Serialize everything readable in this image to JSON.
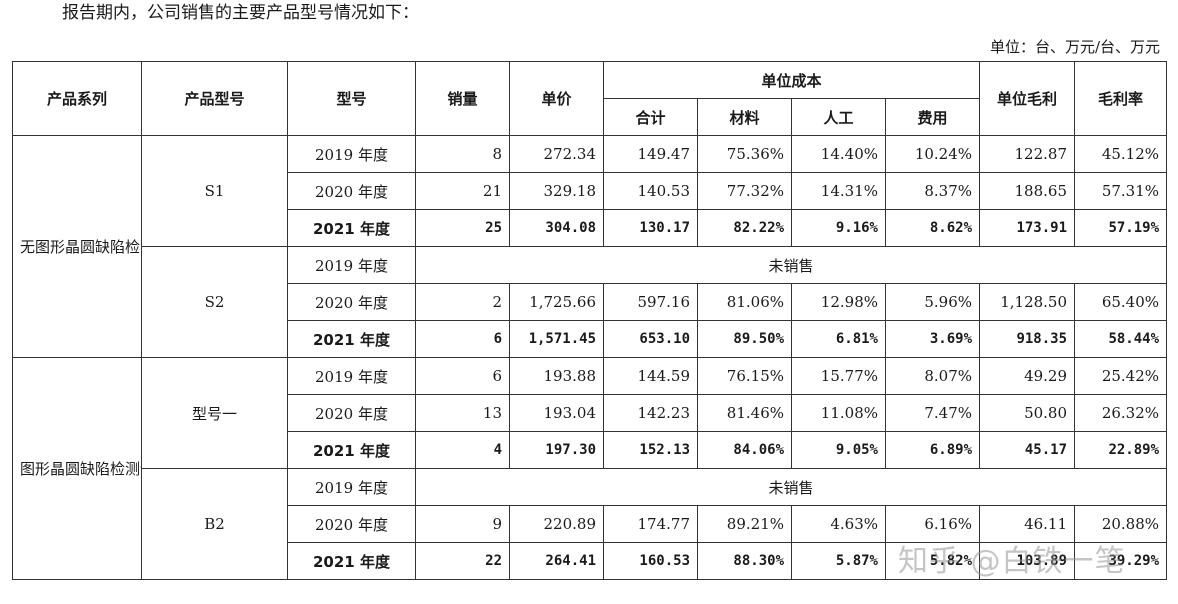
{
  "intro": "报告期内，公司销售的主要产品型号情况如下：",
  "unit": "单位：台、万元/台、万元",
  "headers": {
    "series": "产品系列",
    "model": "产品型号",
    "type": "型号",
    "sales": "销量",
    "price": "单价",
    "unit_cost": "单位成本",
    "total": "合计",
    "material": "材料",
    "labor": "人工",
    "expense": "费用",
    "unit_gross_profit": "单位毛利",
    "gross_margin": "毛利率"
  },
  "unsold_label": "未销售",
  "groups": [
    {
      "series": "无图形晶圆缺陷检测设备",
      "models": [
        {
          "model": "S1",
          "rows": [
            {
              "year": "2019 年度",
              "sales": "8",
              "price": "272.34",
              "total": "149.47",
              "material": "75.36%",
              "labor": "14.40%",
              "expense": "10.24%",
              "gp": "122.87",
              "margin": "45.12%"
            },
            {
              "year": "2020 年度",
              "sales": "21",
              "price": "329.18",
              "total": "140.53",
              "material": "77.32%",
              "labor": "14.31%",
              "expense": "8.37%",
              "gp": "188.65",
              "margin": "57.31%"
            },
            {
              "year": "2021 年度",
              "sales": "25",
              "price": "304.08",
              "total": "130.17",
              "material": "82.22%",
              "labor": "9.16%",
              "expense": "8.62%",
              "gp": "173.91",
              "margin": "57.19%"
            }
          ]
        },
        {
          "model": "S2",
          "rows": [
            {
              "year": "2019 年度"
            },
            {
              "year": "2020 年度",
              "sales": "2",
              "price": "1,725.66",
              "total": "597.16",
              "material": "81.06%",
              "labor": "12.98%",
              "expense": "5.96%",
              "gp": "1,128.50",
              "margin": "65.40%"
            },
            {
              "year": "2021 年度",
              "sales": "6",
              "price": "1,571.45",
              "total": "653.10",
              "material": "89.50%",
              "labor": "6.81%",
              "expense": "3.69%",
              "gp": "918.35",
              "margin": "58.44%"
            }
          ]
        }
      ]
    },
    {
      "series": "图形晶圆缺陷检测设备",
      "models": [
        {
          "model": "型号一",
          "rows": [
            {
              "year": "2019 年度",
              "sales": "6",
              "price": "193.88",
              "total": "144.59",
              "material": "76.15%",
              "labor": "15.77%",
              "expense": "8.07%",
              "gp": "49.29",
              "margin": "25.42%"
            },
            {
              "year": "2020 年度",
              "sales": "13",
              "price": "193.04",
              "total": "142.23",
              "material": "81.46%",
              "labor": "11.08%",
              "expense": "7.47%",
              "gp": "50.80",
              "margin": "26.32%"
            },
            {
              "year": "2021 年度",
              "sales": "4",
              "price": "197.30",
              "total": "152.13",
              "material": "84.06%",
              "labor": "9.05%",
              "expense": "6.89%",
              "gp": "45.17",
              "margin": "22.89%"
            }
          ]
        },
        {
          "model": "B2",
          "rows": [
            {
              "year": "2019 年度"
            },
            {
              "year": "2020 年度",
              "sales": "9",
              "price": "220.89",
              "total": "174.77",
              "material": "89.21%",
              "labor": "4.63%",
              "expense": "6.16%",
              "gp": "46.11",
              "margin": "20.88%"
            },
            {
              "year": "2021 年度",
              "sales": "22",
              "price": "264.41",
              "total": "160.53",
              "material": "88.30%",
              "labor": "5.87%",
              "expense": "5.82%",
              "gp": "103.89",
              "margin": "39.29%"
            }
          ]
        }
      ]
    }
  ],
  "watermark": "知乎 @白铁一笔"
}
